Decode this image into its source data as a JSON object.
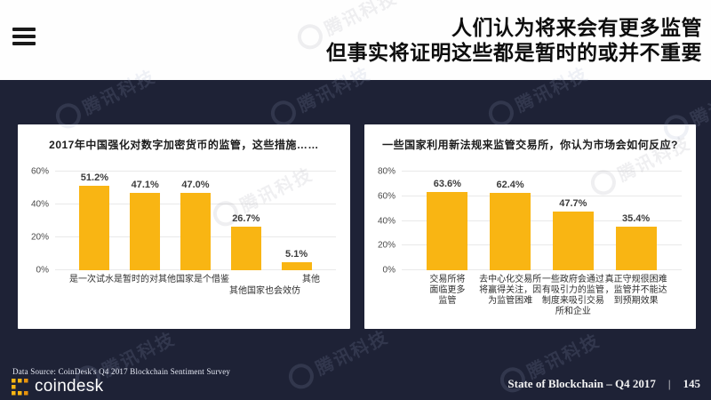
{
  "header": {
    "title_line1": "人们认为将来会有更多监管",
    "title_line2": "但事实将证明这些都是暂时的或并不重要"
  },
  "chart_data": [
    {
      "type": "bar",
      "title": "2017年中国强化对数字加密货币的监管，这些措施……",
      "categories": [
        "是一次试水",
        "是暂时的",
        "对其他国家是个借鉴",
        "其他国家也会效仿",
        "其他"
      ],
      "values": [
        51.2,
        47.1,
        47.0,
        26.7,
        5.1
      ],
      "value_labels": [
        "51.2%",
        "47.1%",
        "47.0%",
        "26.7%",
        "5.1%"
      ],
      "xlabel": "",
      "ylabel": "",
      "ylim": [
        0,
        60
      ],
      "yticks": [
        "0%",
        "20%",
        "40%",
        "60%"
      ],
      "grid": true,
      "legend": false,
      "bar_color": "#F9B513",
      "label_offsets": [
        0,
        0,
        0,
        1,
        0
      ]
    },
    {
      "type": "bar",
      "title": "一些国家利用新法规来监管交易所，你认为市场会如何反应?",
      "categories": [
        "交易所将\n面临更多\n监管",
        "去中心化交易所\n将赢得关注，因\n为监管困难",
        "一些政府会通过\n有吸引力的监管\n制度来吸引交易\n所和企业",
        "真正守规很困难\n，监管并不能达\n到预期效果"
      ],
      "values": [
        63.6,
        62.4,
        47.7,
        35.4
      ],
      "value_labels": [
        "63.6%",
        "62.4%",
        "47.7%",
        "35.4%"
      ],
      "xlabel": "",
      "ylabel": "",
      "ylim": [
        0,
        80
      ],
      "yticks": [
        "0%",
        "20%",
        "40%",
        "60%",
        "80%"
      ],
      "grid": true,
      "legend": false,
      "bar_color": "#F9B513",
      "label_offsets": [
        0,
        0,
        0,
        0
      ]
    }
  ],
  "footer": {
    "data_source": "Data Source: CoinDesk's Q4 2017 Blockchain Sentiment Survey",
    "brand": "coindesk",
    "report_title": "State of Blockchain – Q4 2017",
    "divider": "|",
    "page_number": "145"
  },
  "watermark": {
    "text": "腾讯科技"
  },
  "colors": {
    "background": "#1E2236",
    "panel": "#FFFFFF",
    "bar": "#F9B513",
    "logo_accent": "#F9B513"
  }
}
